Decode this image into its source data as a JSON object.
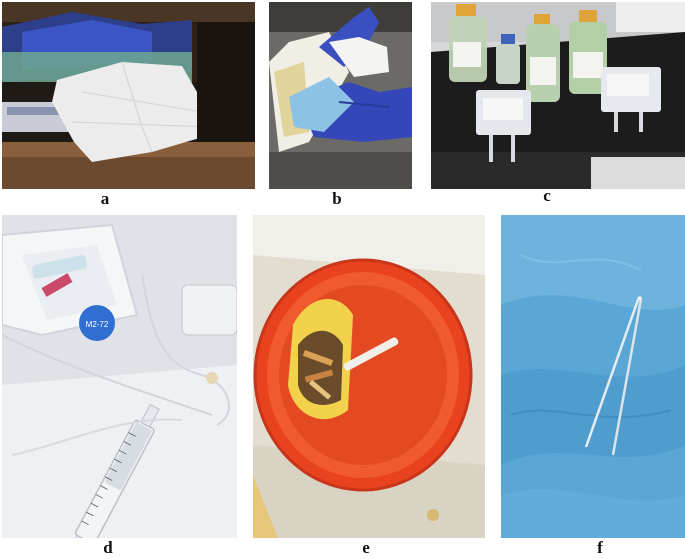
{
  "figure": {
    "panels": [
      {
        "label": "a",
        "subject": "paper towel over box in drawer"
      },
      {
        "label": "b",
        "subject": "gloved hands wiping with paper towel"
      },
      {
        "label": "c",
        "subject": "glass bottles and IV bags on bench"
      },
      {
        "label": "d",
        "subject": "syringe and tubing on tray"
      },
      {
        "label": "e",
        "subject": "red sharps container"
      },
      {
        "label": "f",
        "subject": "tweezers on blue drape"
      }
    ],
    "sticker_text": "M2-72",
    "colors": {
      "sharps_container": "#e8421f",
      "drape_blue": "#5aa7d6",
      "glove_blue": "#3b55c4",
      "bench_black": "#1a1a1a"
    }
  }
}
